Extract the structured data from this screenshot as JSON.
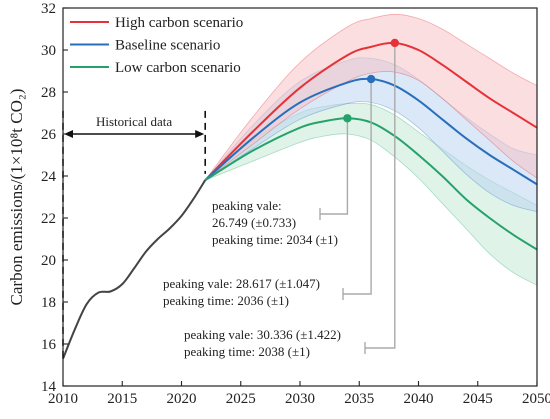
{
  "chart_data": {
    "type": "line",
    "xlim": [
      2010,
      2050
    ],
    "ylim": [
      14,
      32
    ],
    "xticks": [
      2010,
      2015,
      2020,
      2025,
      2030,
      2035,
      2040,
      2045,
      2050
    ],
    "yticks": [
      14,
      16,
      18,
      20,
      22,
      24,
      26,
      28,
      30,
      32
    ],
    "ylabel": "Carbon emissions/(1×10⁸t CO₂)",
    "legend": {
      "position": "top-left"
    },
    "historical": {
      "label": "Historical data",
      "range": [
        2010,
        2022
      ],
      "points": [
        [
          2010,
          15.3
        ],
        [
          2011,
          16.7
        ],
        [
          2012,
          17.9
        ],
        [
          2013,
          18.45
        ],
        [
          2014,
          18.5
        ],
        [
          2015,
          18.85
        ],
        [
          2016,
          19.6
        ],
        [
          2017,
          20.4
        ],
        [
          2018,
          21.0
        ],
        [
          2019,
          21.5
        ],
        [
          2020,
          22.1
        ],
        [
          2021,
          22.9
        ],
        [
          2022,
          23.8
        ]
      ],
      "color": "#444444"
    },
    "series": [
      {
        "name": "High carbon scenario",
        "color": "#e53238",
        "band_color": "#f6c3c6",
        "points": [
          [
            2022,
            23.8
          ],
          [
            2026,
            26.1
          ],
          [
            2030,
            28.2
          ],
          [
            2034,
            29.75
          ],
          [
            2036,
            30.15
          ],
          [
            2038,
            30.336
          ],
          [
            2040,
            30.0
          ],
          [
            2042,
            29.3
          ],
          [
            2044,
            28.5
          ],
          [
            2046,
            27.7
          ],
          [
            2048,
            27.0
          ],
          [
            2050,
            26.3
          ]
        ],
        "upper": [
          [
            2022,
            23.8
          ],
          [
            2026,
            26.8
          ],
          [
            2030,
            29.4
          ],
          [
            2034,
            31.1
          ],
          [
            2036,
            31.5
          ],
          [
            2038,
            31.7
          ],
          [
            2040,
            31.5
          ],
          [
            2042,
            31.0
          ],
          [
            2044,
            30.3
          ],
          [
            2046,
            29.6
          ],
          [
            2048,
            28.9
          ],
          [
            2050,
            28.3
          ]
        ],
        "lower": [
          [
            2022,
            23.8
          ],
          [
            2026,
            25.5
          ],
          [
            2030,
            27.2
          ],
          [
            2034,
            28.5
          ],
          [
            2036,
            28.9
          ],
          [
            2038,
            28.95
          ],
          [
            2040,
            28.55
          ],
          [
            2042,
            27.7
          ],
          [
            2044,
            26.7
          ],
          [
            2046,
            25.7
          ],
          [
            2048,
            24.7
          ],
          [
            2050,
            23.9
          ]
        ],
        "peak": {
          "x": 2038,
          "y": 30.336
        }
      },
      {
        "name": "Baseline scenario",
        "color": "#2a6ebb",
        "band_color": "#bcd6f2",
        "points": [
          [
            2022,
            23.8
          ],
          [
            2026,
            25.8
          ],
          [
            2030,
            27.5
          ],
          [
            2034,
            28.45
          ],
          [
            2036,
            28.617
          ],
          [
            2038,
            28.3
          ],
          [
            2040,
            27.6
          ],
          [
            2042,
            26.7
          ],
          [
            2044,
            25.8
          ],
          [
            2046,
            25.0
          ],
          [
            2048,
            24.3
          ],
          [
            2050,
            23.6
          ]
        ],
        "upper": [
          [
            2022,
            23.8
          ],
          [
            2026,
            26.4
          ],
          [
            2030,
            28.5
          ],
          [
            2034,
            29.5
          ],
          [
            2036,
            29.6
          ],
          [
            2038,
            29.3
          ],
          [
            2040,
            28.6
          ],
          [
            2042,
            27.7
          ],
          [
            2044,
            26.8
          ],
          [
            2046,
            26.0
          ],
          [
            2048,
            25.3
          ],
          [
            2050,
            25.0
          ]
        ],
        "lower": [
          [
            2022,
            23.8
          ],
          [
            2026,
            25.3
          ],
          [
            2030,
            26.7
          ],
          [
            2034,
            27.45
          ],
          [
            2036,
            27.5
          ],
          [
            2038,
            27.1
          ],
          [
            2040,
            26.3
          ],
          [
            2042,
            25.2
          ],
          [
            2044,
            24.1
          ],
          [
            2046,
            23.2
          ],
          [
            2048,
            22.6
          ],
          [
            2050,
            22.3
          ]
        ],
        "peak": {
          "x": 2036,
          "y": 28.617
        }
      },
      {
        "name": "Low carbon scenario",
        "color": "#25a26a",
        "band_color": "#c7e9d5",
        "points": [
          [
            2022,
            23.8
          ],
          [
            2026,
            25.2
          ],
          [
            2030,
            26.3
          ],
          [
            2032,
            26.6
          ],
          [
            2034,
            26.749
          ],
          [
            2036,
            26.55
          ],
          [
            2038,
            25.9
          ],
          [
            2040,
            25.0
          ],
          [
            2042,
            24.0
          ],
          [
            2044,
            22.9
          ],
          [
            2046,
            22.0
          ],
          [
            2048,
            21.2
          ],
          [
            2050,
            20.5
          ]
        ],
        "upper": [
          [
            2022,
            23.8
          ],
          [
            2026,
            25.7
          ],
          [
            2030,
            27.0
          ],
          [
            2032,
            27.3
          ],
          [
            2034,
            27.45
          ],
          [
            2036,
            27.4
          ],
          [
            2038,
            26.9
          ],
          [
            2040,
            26.1
          ],
          [
            2042,
            25.3
          ],
          [
            2044,
            24.5
          ],
          [
            2046,
            23.8
          ],
          [
            2048,
            23.2
          ],
          [
            2050,
            22.6
          ]
        ],
        "lower": [
          [
            2022,
            23.8
          ],
          [
            2026,
            24.7
          ],
          [
            2030,
            25.6
          ],
          [
            2032,
            25.9
          ],
          [
            2034,
            26.0
          ],
          [
            2036,
            25.7
          ],
          [
            2038,
            24.9
          ],
          [
            2040,
            23.9
          ],
          [
            2042,
            22.7
          ],
          [
            2044,
            21.5
          ],
          [
            2046,
            20.3
          ],
          [
            2048,
            19.4
          ],
          [
            2050,
            18.8
          ]
        ],
        "peak": {
          "x": 2034,
          "y": 26.749
        }
      }
    ],
    "annotations": [
      {
        "lines": [
          "peaking vale:",
          "26.749 (±0.733)",
          "peaking time: 2034 (±1)"
        ],
        "series": "Low carbon scenario"
      },
      {
        "lines": [
          "peaking vale: 28.617 (±1.047)",
          "peaking time: 2036 (±1)"
        ],
        "series": "Baseline scenario"
      },
      {
        "lines": [
          "peaking vale: 30.336 (±1.422)",
          "peaking time: 2038 (±1)"
        ],
        "series": "High carbon scenario"
      }
    ]
  }
}
